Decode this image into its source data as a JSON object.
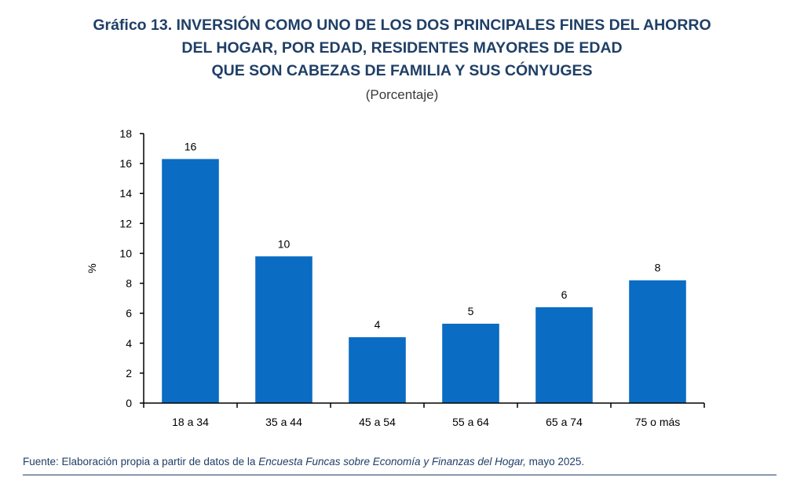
{
  "title_lines": [
    "Gráfico 13. INVERSIÓN COMO UNO DE LOS DOS PRINCIPALES FINES DEL AHORRO",
    "DEL HOGAR, POR EDAD, RESIDENTES MAYORES DE EDAD",
    "QUE SON CABEZAS DE FAMILIA Y SUS CÓNYUGES"
  ],
  "subtitle": "(Porcentaje)",
  "source": {
    "prefix": "Fuente: Elaboración propia a partir de datos de la ",
    "italic": "Encuesta Funcas sobre Economía y Finanzas del Hogar,",
    "suffix": " mayo 2025."
  },
  "colors": {
    "bar": "#0a6cc3",
    "title": "#1f3f66",
    "axis": "#000000"
  },
  "chart_data": {
    "type": "bar",
    "ylabel": "%",
    "ylim": [
      0,
      18
    ],
    "yticks": [
      0,
      2,
      4,
      6,
      8,
      10,
      12,
      14,
      16,
      18
    ],
    "categories": [
      "18 a 34",
      "35 a 44",
      "45 a 54",
      "55 a 64",
      "65 a 74",
      "75 o más"
    ],
    "values": [
      16.3,
      9.8,
      4.4,
      5.3,
      6.4,
      8.2
    ],
    "data_labels": [
      "16",
      "10",
      "4",
      "5",
      "6",
      "8"
    ]
  }
}
